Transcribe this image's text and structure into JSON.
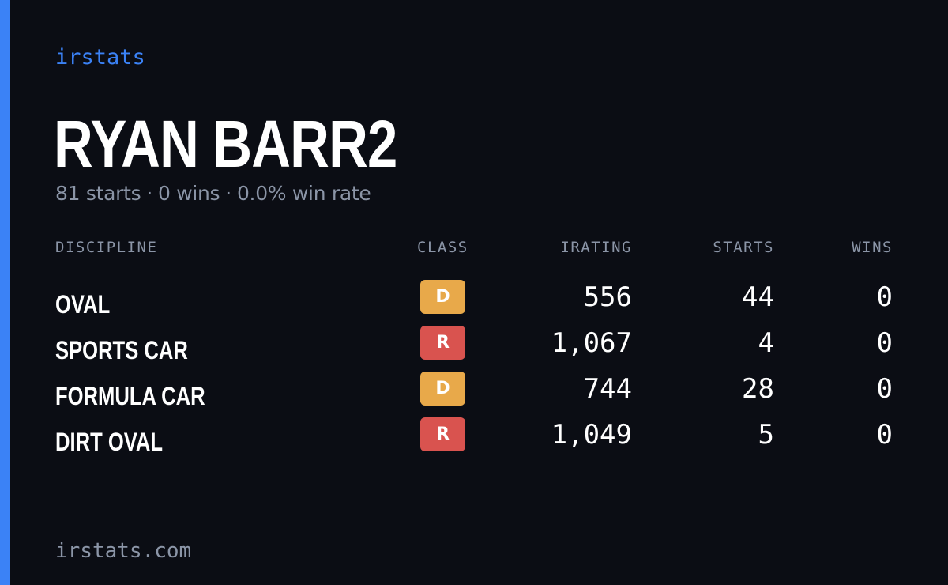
{
  "brand": "irstats",
  "driver": {
    "name": "RYAN BARR2"
  },
  "summary": {
    "starts": "81 starts",
    "wins": "0 wins",
    "win_rate": "0.0% win rate",
    "separator": "·"
  },
  "table": {
    "headers": {
      "discipline": "DISCIPLINE",
      "class": "CLASS",
      "irating": "IRATING",
      "starts": "STARTS",
      "wins": "WINS"
    },
    "rows": [
      {
        "discipline": "OVAL",
        "class": "D",
        "class_color": "#e8a94a",
        "irating": "556",
        "starts": "44",
        "wins": "0"
      },
      {
        "discipline": "SPORTS CAR",
        "class": "R",
        "class_color": "#d9534f",
        "irating": "1,067",
        "starts": "4",
        "wins": "0"
      },
      {
        "discipline": "FORMULA CAR",
        "class": "D",
        "class_color": "#e8a94a",
        "irating": "744",
        "starts": "28",
        "wins": "0"
      },
      {
        "discipline": "DIRT OVAL",
        "class": "R",
        "class_color": "#d9534f",
        "irating": "1,049",
        "starts": "5",
        "wins": "0"
      }
    ]
  },
  "footer": {
    "domain": "irstats.com"
  },
  "colors": {
    "accent": "#3b82f6",
    "background": "#0b0d14",
    "muted_text": "#8b95a7",
    "class_d": "#e8a94a",
    "class_r": "#d9534f"
  }
}
